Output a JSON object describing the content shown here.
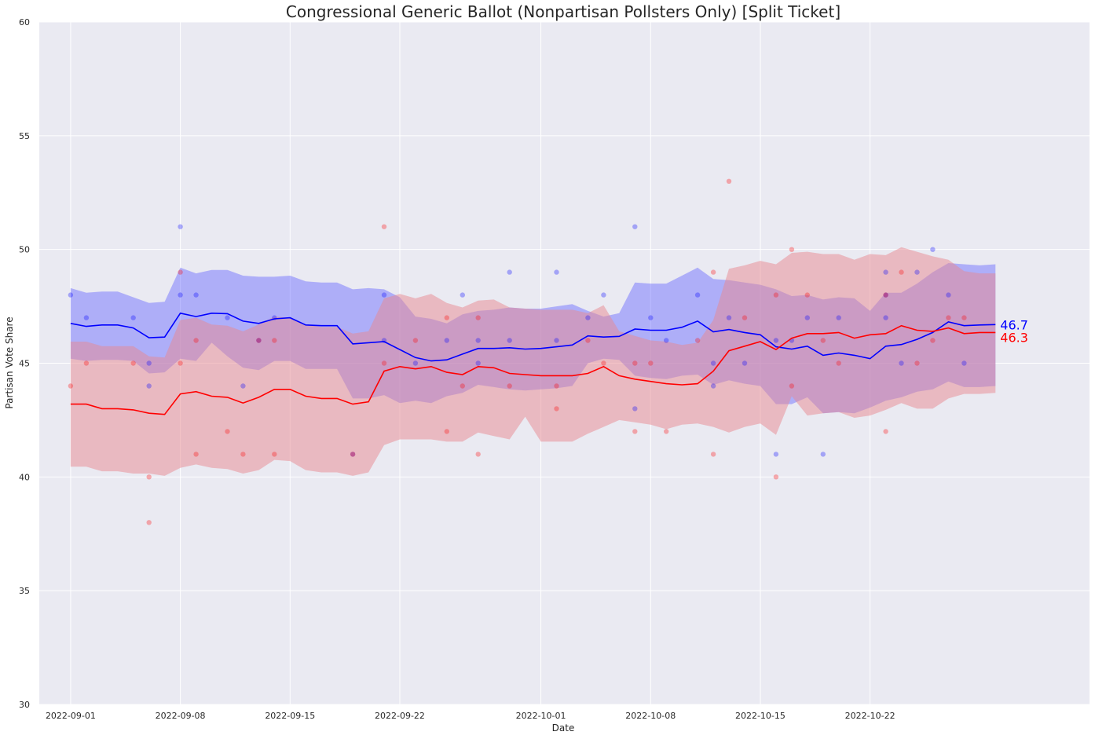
{
  "chart_data": {
    "type": "line",
    "title": "Congressional Generic Ballot (Nonpartisan Pollsters Only) [Split Ticket]",
    "xlabel": "Date",
    "ylabel": "Partisan Vote Share",
    "ylim": [
      30,
      60
    ],
    "yticks": [
      "30",
      "35",
      "40",
      "45",
      "50",
      "55",
      "60"
    ],
    "xlim": [
      "2022-08-30",
      "2022-11-05"
    ],
    "xticks": [
      "2022-09-01",
      "2022-09-08",
      "2022-09-15",
      "2022-09-22",
      "2022-10-01",
      "2022-10-08",
      "2022-10-15",
      "2022-10-22"
    ],
    "grid": true,
    "dates": [
      "2022-09-01",
      "2022-09-02",
      "2022-09-03",
      "2022-09-04",
      "2022-09-05",
      "2022-09-06",
      "2022-09-07",
      "2022-09-08",
      "2022-09-09",
      "2022-09-10",
      "2022-09-11",
      "2022-09-12",
      "2022-09-13",
      "2022-09-14",
      "2022-09-15",
      "2022-09-16",
      "2022-09-17",
      "2022-09-18",
      "2022-09-19",
      "2022-09-20",
      "2022-09-21",
      "2022-09-22",
      "2022-09-23",
      "2022-09-24",
      "2022-09-25",
      "2022-09-26",
      "2022-09-27",
      "2022-09-28",
      "2022-09-29",
      "2022-09-30",
      "2022-10-01",
      "2022-10-02",
      "2022-10-03",
      "2022-10-04",
      "2022-10-05",
      "2022-10-06",
      "2022-10-07",
      "2022-10-08",
      "2022-10-09",
      "2022-10-10",
      "2022-10-11",
      "2022-10-12",
      "2022-10-13",
      "2022-10-14",
      "2022-10-15",
      "2022-10-16",
      "2022-10-17",
      "2022-10-18",
      "2022-10-19",
      "2022-10-20",
      "2022-10-21",
      "2022-10-22",
      "2022-10-23",
      "2022-10-24",
      "2022-10-25",
      "2022-10-26",
      "2022-10-27",
      "2022-10-28",
      "2022-10-29",
      "2022-10-30"
    ],
    "series": [
      {
        "color": "#0000ff",
        "band_color": "#6666ff",
        "end_label": "46.7",
        "values": [
          46.75,
          46.62,
          46.68,
          46.68,
          46.55,
          46.12,
          46.15,
          47.2,
          47.05,
          47.2,
          47.18,
          46.85,
          46.75,
          46.95,
          47.0,
          46.68,
          46.65,
          46.65,
          45.85,
          45.9,
          45.95,
          45.6,
          45.25,
          45.1,
          45.15,
          45.4,
          45.65,
          45.65,
          45.68,
          45.62,
          45.65,
          45.72,
          45.8,
          46.2,
          46.15,
          46.18,
          46.5,
          46.45,
          46.45,
          46.58,
          46.85,
          46.38,
          46.48,
          46.35,
          46.25,
          45.72,
          45.62,
          45.75,
          45.35,
          45.45,
          45.35,
          45.2,
          45.75,
          45.82,
          46.05,
          46.35,
          46.82,
          46.65,
          46.68,
          46.7
        ],
        "upper": [
          48.3,
          48.1,
          48.15,
          48.15,
          47.9,
          47.65,
          47.7,
          49.2,
          48.95,
          49.1,
          49.1,
          48.85,
          48.8,
          48.8,
          48.85,
          48.6,
          48.55,
          48.55,
          48.25,
          48.3,
          48.25,
          47.9,
          47.05,
          46.95,
          46.75,
          47.15,
          47.3,
          47.35,
          47.45,
          47.4,
          47.4,
          47.5,
          47.6,
          47.3,
          47.05,
          47.2,
          48.55,
          48.5,
          48.5,
          48.85,
          49.2,
          48.7,
          48.65,
          48.55,
          48.45,
          48.25,
          47.95,
          48.0,
          47.8,
          47.9,
          47.85,
          47.3,
          48.1,
          48.1,
          48.5,
          49.0,
          49.4,
          49.35,
          49.3,
          49.35
        ],
        "lower": [
          45.2,
          45.1,
          45.15,
          45.15,
          45.1,
          44.55,
          44.6,
          45.2,
          45.1,
          45.9,
          45.3,
          44.8,
          44.7,
          45.1,
          45.1,
          44.75,
          44.75,
          44.75,
          43.45,
          43.45,
          43.6,
          43.25,
          43.35,
          43.25,
          43.55,
          43.7,
          44.05,
          43.95,
          43.85,
          43.8,
          43.85,
          43.9,
          44.0,
          45.0,
          45.2,
          45.15,
          44.45,
          44.35,
          44.3,
          44.45,
          44.5,
          44.05,
          44.25,
          44.1,
          44.0,
          43.2,
          43.2,
          43.5,
          42.8,
          42.85,
          42.8,
          43.05,
          43.35,
          43.5,
          43.75,
          43.85,
          44.2,
          43.95,
          43.95,
          44.0
        ]
      },
      {
        "color": "#ff0000",
        "band_color": "#e88890",
        "end_label": "46.3",
        "values": [
          43.2,
          43.2,
          43.0,
          43.0,
          42.95,
          42.8,
          42.75,
          43.65,
          43.75,
          43.55,
          43.5,
          43.25,
          43.5,
          43.85,
          43.85,
          43.55,
          43.45,
          43.45,
          43.2,
          43.3,
          44.65,
          44.85,
          44.75,
          44.85,
          44.6,
          44.5,
          44.85,
          44.8,
          44.55,
          44.5,
          44.45,
          44.45,
          44.45,
          44.55,
          44.85,
          44.45,
          44.3,
          44.2,
          44.1,
          44.05,
          44.1,
          44.65,
          45.55,
          45.75,
          45.95,
          45.6,
          46.1,
          46.3,
          46.3,
          46.35,
          46.1,
          46.25,
          46.3,
          46.65,
          46.45,
          46.4,
          46.55,
          46.3,
          46.35,
          46.35
        ],
        "upper": [
          45.95,
          45.95,
          45.75,
          45.75,
          45.75,
          45.3,
          45.25,
          46.9,
          47.0,
          46.7,
          46.65,
          46.4,
          46.7,
          47.05,
          47.0,
          46.7,
          46.6,
          46.6,
          46.3,
          46.4,
          47.85,
          48.05,
          47.85,
          48.05,
          47.65,
          47.45,
          47.75,
          47.8,
          47.45,
          47.4,
          47.35,
          47.35,
          47.35,
          47.2,
          47.55,
          46.4,
          46.2,
          46.0,
          45.95,
          45.8,
          45.9,
          46.9,
          49.15,
          49.3,
          49.5,
          49.35,
          49.85,
          49.9,
          49.8,
          49.8,
          49.55,
          49.8,
          49.75,
          50.1,
          49.9,
          49.7,
          49.55,
          49.05,
          48.95,
          48.95
        ],
        "lower": [
          40.45,
          40.45,
          40.25,
          40.25,
          40.15,
          40.15,
          40.05,
          40.4,
          40.55,
          40.4,
          40.35,
          40.15,
          40.3,
          40.75,
          40.7,
          40.3,
          40.2,
          40.2,
          40.05,
          40.2,
          41.4,
          41.65,
          41.65,
          41.65,
          41.55,
          41.55,
          41.95,
          41.8,
          41.65,
          42.65,
          41.55,
          41.55,
          41.55,
          41.9,
          42.2,
          42.5,
          42.4,
          42.3,
          42.1,
          42.3,
          42.35,
          42.2,
          41.95,
          42.2,
          42.35,
          41.85,
          43.55,
          42.7,
          42.8,
          42.85,
          42.6,
          42.7,
          42.95,
          43.25,
          43.0,
          43.0,
          43.45,
          43.65,
          43.65,
          43.7
        ]
      }
    ],
    "polls": [
      {
        "color": "#0000ff",
        "x": [
          "2022-09-01",
          "2022-09-02",
          "2022-09-05",
          "2022-09-06",
          "2022-09-06",
          "2022-09-08",
          "2022-09-08",
          "2022-09-09",
          "2022-09-11",
          "2022-09-12",
          "2022-09-13",
          "2022-09-14",
          "2022-09-19",
          "2022-09-21",
          "2022-09-21",
          "2022-09-23",
          "2022-09-25",
          "2022-09-26",
          "2022-09-27",
          "2022-09-27",
          "2022-09-29",
          "2022-09-29",
          "2022-10-02",
          "2022-10-02",
          "2022-10-04",
          "2022-10-05",
          "2022-10-07",
          "2022-10-07",
          "2022-10-08",
          "2022-10-09",
          "2022-10-11",
          "2022-10-12",
          "2022-10-12",
          "2022-10-13",
          "2022-10-14",
          "2022-10-16",
          "2022-10-16",
          "2022-10-17",
          "2022-10-18",
          "2022-10-19",
          "2022-10-20",
          "2022-10-23",
          "2022-10-23",
          "2022-10-23",
          "2022-10-24",
          "2022-10-25",
          "2022-10-26",
          "2022-10-27",
          "2022-10-28"
        ],
        "y": [
          48,
          47,
          47,
          45,
          44,
          51,
          48,
          48,
          47,
          44,
          46,
          47,
          41,
          48,
          46,
          45,
          46,
          48,
          46,
          45,
          49,
          46,
          49,
          46,
          47,
          48,
          51,
          43,
          47,
          46,
          48,
          44,
          45,
          47,
          45,
          46,
          41,
          46,
          47,
          41,
          47,
          49,
          47,
          48,
          45,
          49,
          50,
          48,
          45
        ]
      },
      {
        "color": "#ff0000",
        "x": [
          "2022-09-01",
          "2022-09-02",
          "2022-09-05",
          "2022-09-06",
          "2022-09-06",
          "2022-09-08",
          "2022-09-08",
          "2022-09-09",
          "2022-09-09",
          "2022-09-11",
          "2022-09-12",
          "2022-09-13",
          "2022-09-14",
          "2022-09-14",
          "2022-09-19",
          "2022-09-21",
          "2022-09-21",
          "2022-09-23",
          "2022-09-25",
          "2022-09-25",
          "2022-09-26",
          "2022-09-27",
          "2022-09-27",
          "2022-09-29",
          "2022-10-02",
          "2022-10-02",
          "2022-10-04",
          "2022-10-05",
          "2022-10-07",
          "2022-10-07",
          "2022-10-08",
          "2022-10-09",
          "2022-10-11",
          "2022-10-12",
          "2022-10-12",
          "2022-10-13",
          "2022-10-14",
          "2022-10-16",
          "2022-10-16",
          "2022-10-17",
          "2022-10-17",
          "2022-10-18",
          "2022-10-19",
          "2022-10-20",
          "2022-10-23",
          "2022-10-23",
          "2022-10-24",
          "2022-10-25",
          "2022-10-26",
          "2022-10-27",
          "2022-10-28"
        ],
        "y": [
          44,
          45,
          45,
          40,
          38,
          49,
          45,
          46,
          41,
          42,
          41,
          46,
          46,
          41,
          41,
          51,
          45,
          46,
          47,
          42,
          44,
          47,
          41,
          44,
          44,
          43,
          46,
          45,
          45,
          42,
          45,
          42,
          46,
          49,
          41,
          53,
          47,
          48,
          40,
          50,
          44,
          48,
          46,
          45,
          48,
          42,
          49,
          45,
          46,
          47,
          47
        ]
      }
    ]
  }
}
